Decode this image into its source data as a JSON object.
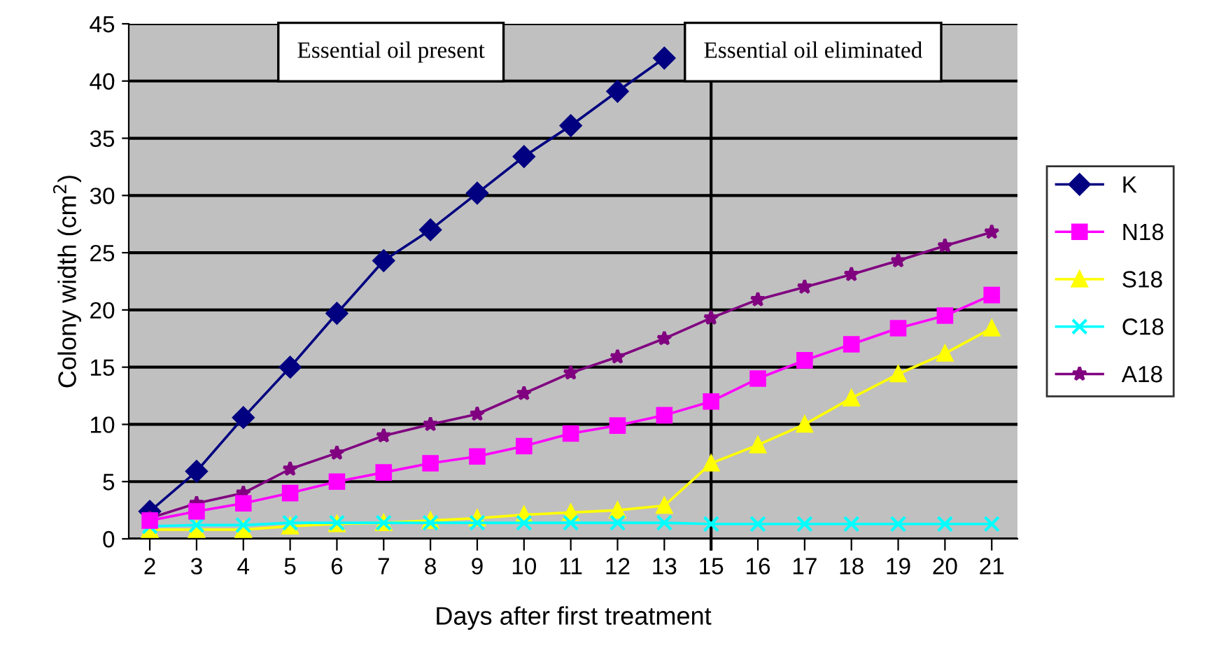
{
  "chart_data": {
    "type": "line",
    "xlabel": "Days after first treatment",
    "ylabel": "Colony width (cm$^{2}$)",
    "categories": [
      "2",
      "3",
      "4",
      "5",
      "6",
      "7",
      "8",
      "9",
      "10",
      "11",
      "12",
      "13",
      "15",
      "16",
      "17",
      "18",
      "19",
      "20",
      "21"
    ],
    "series": [
      {
        "name": "K",
        "color": "#000080",
        "marker": "diamond",
        "values": [
          2.4,
          5.9,
          10.6,
          15,
          19.7,
          24.3,
          27,
          30.2,
          33.4,
          36.1,
          39.1,
          42.0,
          null,
          null,
          null,
          null,
          null,
          null,
          null
        ]
      },
      {
        "name": "N18",
        "color": "#ff00ff",
        "marker": "square",
        "values": [
          1.6,
          2.4,
          3.1,
          4.0,
          5.0,
          5.8,
          6.6,
          7.2,
          8.1,
          9.2,
          9.9,
          10.8,
          12.0,
          14.0,
          15.6,
          17.0,
          18.4,
          19.5,
          21.3
        ]
      },
      {
        "name": "S18",
        "color": "#ffff00",
        "marker": "triangle",
        "values": [
          0.8,
          0.8,
          0.8,
          1.1,
          1.3,
          1.4,
          1.6,
          1.8,
          2.1,
          2.3,
          2.5,
          2.9,
          6.6,
          8.2,
          10.0,
          12.3,
          14.4,
          16.2,
          18.4
        ]
      },
      {
        "name": "C18",
        "color": "#00ffff",
        "marker": "cross",
        "values": [
          1.1,
          1.2,
          1.2,
          1.4,
          1.4,
          1.4,
          1.4,
          1.4,
          1.4,
          1.4,
          1.4,
          1.4,
          1.3,
          1.3,
          1.3,
          1.3,
          1.3,
          1.3,
          1.3
        ]
      },
      {
        "name": "A18",
        "color": "#800080",
        "marker": "star",
        "values": [
          1.8,
          3.1,
          4.0,
          6.1,
          7.5,
          9.0,
          10.0,
          10.9,
          12.7,
          14.5,
          15.9,
          17.5,
          19.3,
          20.9,
          22.0,
          23.1,
          24.3,
          25.6,
          26.8
        ]
      }
    ],
    "ylim": [
      0,
      45
    ],
    "yticks": [
      0,
      5,
      10,
      15,
      20,
      25,
      30,
      35,
      40,
      45
    ],
    "grid": "y",
    "legend": "right",
    "ref_lines": [
      {
        "axis": "x",
        "value": "15",
        "color": "#000000"
      }
    ],
    "annotations": [
      "Essential oil present",
      "Essential oil eliminated"
    ]
  }
}
